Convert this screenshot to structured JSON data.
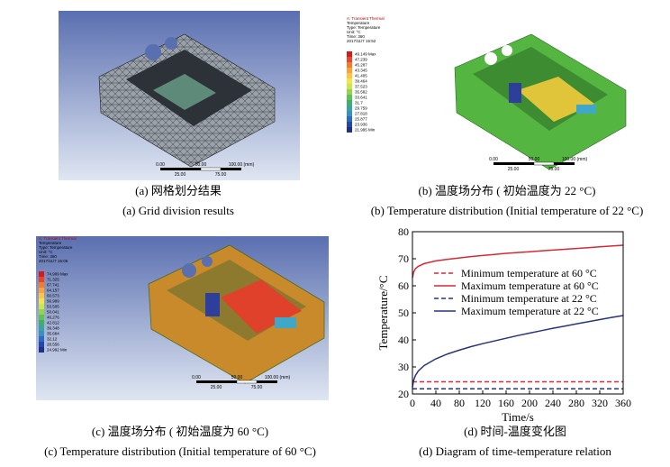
{
  "panels": [
    {
      "caption_cn": "(a) 网格划分结果",
      "caption_en": "(a) Grid division results",
      "scale_labels": [
        "0.00",
        "50.00",
        "100.00 (mm)",
        "25.00",
        "75.00"
      ]
    },
    {
      "caption_cn": "(b) 温度场分布 ( 初始温度为 22 °C)",
      "caption_en": "(b) Temperature distribution (Initial temperature of 22 °C)",
      "legend_header": [
        "A: Transient Thermal",
        "Temperature",
        "Type: Temperature",
        "Unit: °C",
        "Time: 360",
        "2017/11/7 15:52"
      ],
      "legend_values": [
        "49.149 Max",
        "47.239",
        "45.287",
        "43.345",
        "41.405",
        "39.464",
        "37.523",
        "35.582",
        "33.641",
        "31.7",
        "29.759",
        "27.818",
        "25.877",
        "23.936",
        "21.995 Min"
      ],
      "scale_labels": [
        "0.00",
        "50.00",
        "100.00 (mm)",
        "25.00",
        "75.00"
      ]
    },
    {
      "caption_cn": "(c) 温度场分布 ( 初始温度为 60 °C)",
      "caption_en": "(c) Temperature distribution (Initial temperature of 60 °C)",
      "legend_header": [
        "A: Transient Thermal",
        "Temperature",
        "Type: Temperature",
        "Unit: °C",
        "Time: 360",
        "2017/11/7 15:05"
      ],
      "legend_values": [
        "74.909 Max",
        "71.325",
        "67.741",
        "64.157",
        "60.573",
        "56.989",
        "53.505",
        "50.041",
        "46.276",
        "42.812",
        "39.348",
        "35.684",
        "32.12",
        "28.556",
        "24.992 Min"
      ],
      "scale_labels": [
        "0.00",
        "50.00",
        "100.00 (mm)",
        "25.00",
        "75.00"
      ]
    },
    {
      "caption_cn": "(d) 时间-温度变化图",
      "caption_en": "(d) Diagram of time-temperature relation"
    }
  ],
  "chart_data": {
    "type": "line",
    "xlabel": "Time/s",
    "ylabel": "Temperature/°C",
    "x": [
      0,
      2,
      5,
      10,
      20,
      40,
      60,
      80,
      100,
      120,
      140,
      160,
      180,
      200,
      220,
      240,
      260,
      280,
      300,
      320,
      340,
      360
    ],
    "xlim": [
      0,
      360
    ],
    "xticks": [
      0,
      40,
      80,
      120,
      160,
      200,
      240,
      280,
      320,
      360
    ],
    "ylim": [
      20,
      80
    ],
    "yticks": [
      20,
      30,
      40,
      50,
      60,
      70,
      80
    ],
    "series": [
      {
        "name": "Minimum temperature at 60 °C",
        "color": "#d62a35",
        "dash": true,
        "values": [
          24.5,
          24.5,
          24.5,
          24.5,
          24.5,
          24.5,
          24.5,
          24.5,
          24.5,
          24.5,
          24.5,
          24.5,
          24.5,
          24.5,
          24.5,
          24.5,
          24.5,
          24.5,
          24.5,
          24.5,
          24.5,
          24.5
        ]
      },
      {
        "name": "Maximum temperature at 60 °C",
        "color": "#d62a35",
        "dash": false,
        "values": [
          63,
          65,
          66.3,
          67.2,
          68.2,
          69.2,
          69.8,
          70.3,
          70.8,
          71.2,
          71.6,
          72,
          72.3,
          72.6,
          72.9,
          73.2,
          73.5,
          73.8,
          74.1,
          74.4,
          74.7,
          75
        ]
      },
      {
        "name": "Minimum temperature at 22 °C",
        "color": "#27357e",
        "dash": true,
        "values": [
          21.9,
          21.9,
          21.9,
          21.9,
          21.9,
          21.9,
          21.9,
          21.9,
          21.9,
          21.9,
          21.9,
          21.9,
          21.9,
          21.9,
          21.9,
          21.9,
          21.9,
          21.9,
          21.9,
          21.9,
          21.9,
          21.9
        ]
      },
      {
        "name": "Maximum temperature at 22 °C",
        "color": "#27357e",
        "dash": false,
        "values": [
          22.5,
          25,
          26.8,
          28.5,
          30.5,
          33,
          34.8,
          36.2,
          37.5,
          38.6,
          39.6,
          40.6,
          41.6,
          42.5,
          43.4,
          44.3,
          45.1,
          45.9,
          46.7,
          47.5,
          48.3,
          49
        ]
      }
    ]
  }
}
